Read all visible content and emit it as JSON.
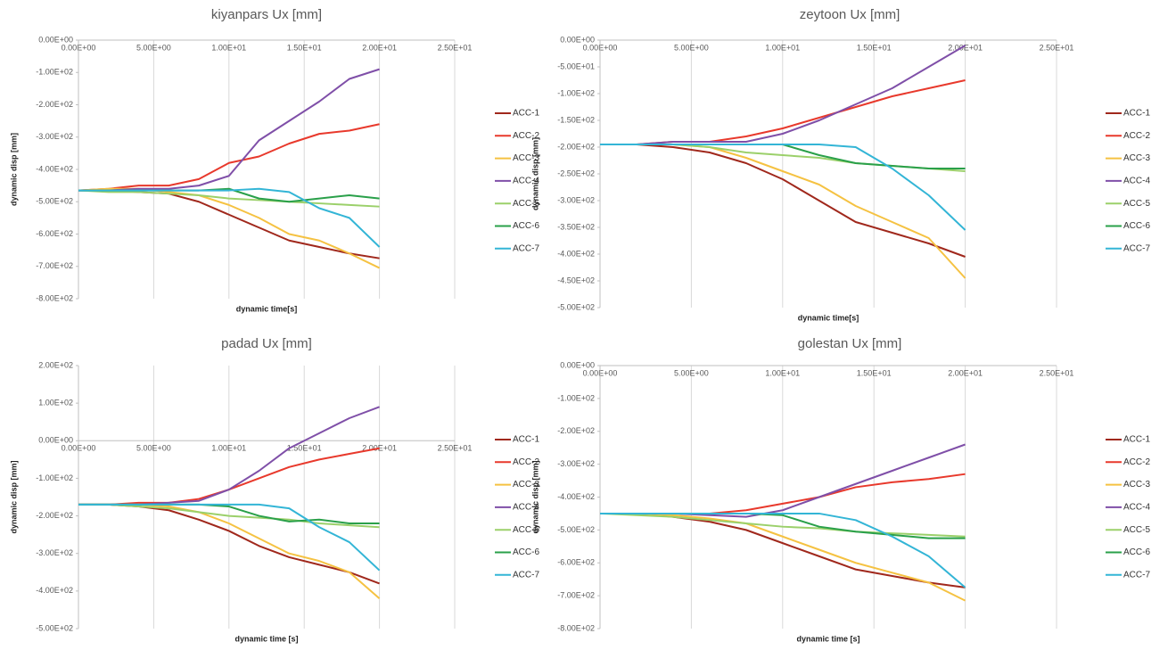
{
  "chart_data": [
    {
      "type": "line",
      "title": "kiyanpars Ux [mm]",
      "x_label": "dynamic time[s]",
      "y_label": "dynamic disp [mm]",
      "x": [
        0,
        2,
        4,
        6,
        8,
        10,
        12,
        14,
        16,
        18,
        20
      ],
      "xlim": [
        0,
        25
      ],
      "ylim": [
        -800,
        0
      ],
      "xgrid": true,
      "xticks": [
        {
          "value": 0,
          "label": "0.00E+00"
        },
        {
          "value": 5,
          "label": "5.00E+00"
        },
        {
          "value": 10,
          "label": "1.00E+01"
        },
        {
          "value": 15,
          "label": "1.50E+01"
        },
        {
          "value": 20,
          "label": "2.00E+01"
        },
        {
          "value": 25,
          "label": "2.50E+01"
        }
      ],
      "yticks": [
        {
          "value": 0,
          "label": "0.00E+00"
        },
        {
          "value": -100,
          "label": "-1.00E+02"
        },
        {
          "value": -200,
          "label": "-2.00E+02"
        },
        {
          "value": -300,
          "label": "-3.00E+02"
        },
        {
          "value": -400,
          "label": "-4.00E+02"
        },
        {
          "value": -500,
          "label": "-5.00E+02"
        },
        {
          "value": -600,
          "label": "-6.00E+02"
        },
        {
          "value": -700,
          "label": "-7.00E+02"
        },
        {
          "value": -800,
          "label": "-8.00E+02"
        }
      ],
      "series": [
        {
          "name": "ACC-1",
          "color": "#a0281c",
          "values": [
            -465,
            -465,
            -470,
            -475,
            -500,
            -540,
            -580,
            -620,
            -640,
            -660,
            -675
          ]
        },
        {
          "name": "ACC-2",
          "color": "#e8392c",
          "values": [
            -465,
            -460,
            -450,
            -450,
            -430,
            -380,
            -360,
            -320,
            -290,
            -280,
            -260
          ]
        },
        {
          "name": "ACC-3",
          "color": "#f5c242",
          "values": [
            -465,
            -460,
            -460,
            -470,
            -480,
            -510,
            -550,
            -600,
            -620,
            -660,
            -705
          ]
        },
        {
          "name": "ACC-4",
          "color": "#7f4fa8",
          "values": [
            -465,
            -465,
            -460,
            -460,
            -450,
            -420,
            -310,
            -250,
            -190,
            -120,
            -90
          ]
        },
        {
          "name": "ACC-5",
          "color": "#9bd06a",
          "values": [
            -465,
            -470,
            -470,
            -475,
            -480,
            -490,
            -495,
            -500,
            -505,
            -510,
            -515
          ]
        },
        {
          "name": "ACC-6",
          "color": "#2aa04a",
          "values": [
            -465,
            -465,
            -465,
            -465,
            -465,
            -460,
            -490,
            -500,
            -490,
            -480,
            -490
          ]
        },
        {
          "name": "ACC-7",
          "color": "#33b5d6",
          "values": [
            -465,
            -465,
            -465,
            -465,
            -465,
            -465,
            -460,
            -470,
            -520,
            -550,
            -640
          ]
        }
      ]
    },
    {
      "type": "line",
      "title": "zeytoon Ux [mm]",
      "x_label": "dynamic time[s]",
      "y_label": "dynamic disp [mm]",
      "x": [
        0,
        2,
        4,
        6,
        8,
        10,
        12,
        14,
        16,
        18,
        20
      ],
      "xlim": [
        0,
        25
      ],
      "ylim": [
        -500,
        0
      ],
      "xgrid": true,
      "xticks": [
        {
          "value": 0,
          "label": "0.00E+00"
        },
        {
          "value": 5,
          "label": "5.00E+00"
        },
        {
          "value": 10,
          "label": "1.00E+01"
        },
        {
          "value": 15,
          "label": "1.50E+01"
        },
        {
          "value": 20,
          "label": "2.00E+01"
        },
        {
          "value": 25,
          "label": "2.50E+01"
        }
      ],
      "yticks": [
        {
          "value": 0,
          "label": "0.00E+00"
        },
        {
          "value": -50,
          "label": "-5.00E+01"
        },
        {
          "value": -100,
          "label": "-1.00E+02"
        },
        {
          "value": -150,
          "label": "-1.50E+02"
        },
        {
          "value": -200,
          "label": "-2.00E+02"
        },
        {
          "value": -250,
          "label": "-2.50E+02"
        },
        {
          "value": -300,
          "label": "-3.00E+02"
        },
        {
          "value": -350,
          "label": "-3.50E+02"
        },
        {
          "value": -400,
          "label": "-4.00E+02"
        },
        {
          "value": -450,
          "label": "-4.50E+02"
        },
        {
          "value": -500,
          "label": "-5.00E+02"
        }
      ],
      "series": [
        {
          "name": "ACC-1",
          "color": "#a0281c",
          "values": [
            -195,
            -195,
            -200,
            -210,
            -230,
            -260,
            -300,
            -340,
            -360,
            -380,
            -405
          ]
        },
        {
          "name": "ACC-2",
          "color": "#e8392c",
          "values": [
            -195,
            -195,
            -190,
            -190,
            -180,
            -165,
            -145,
            -125,
            -105,
            -90,
            -75
          ]
        },
        {
          "name": "ACC-3",
          "color": "#f5c242",
          "values": [
            -195,
            -195,
            -195,
            -200,
            -220,
            -245,
            -270,
            -310,
            -340,
            -370,
            -445
          ]
        },
        {
          "name": "ACC-4",
          "color": "#7f4fa8",
          "values": [
            -195,
            -195,
            -190,
            -190,
            -190,
            -175,
            -150,
            -120,
            -90,
            -50,
            -10
          ]
        },
        {
          "name": "ACC-5",
          "color": "#9bd06a",
          "values": [
            -195,
            -195,
            -195,
            -200,
            -210,
            -215,
            -220,
            -230,
            -235,
            -240,
            -245
          ]
        },
        {
          "name": "ACC-6",
          "color": "#2aa04a",
          "values": [
            -195,
            -195,
            -195,
            -195,
            -195,
            -195,
            -215,
            -230,
            -235,
            -240,
            -240
          ]
        },
        {
          "name": "ACC-7",
          "color": "#33b5d6",
          "values": [
            -195,
            -195,
            -195,
            -195,
            -195,
            -195,
            -195,
            -200,
            -240,
            -290,
            -355
          ]
        }
      ]
    },
    {
      "type": "line",
      "title": "padad Ux [mm]",
      "x_label": "dynamic time [s]",
      "y_label": "dynamic disp [mm]",
      "x": [
        0,
        2,
        4,
        6,
        8,
        10,
        12,
        14,
        16,
        18,
        20
      ],
      "xlim": [
        0,
        25
      ],
      "ylim": [
        -500,
        200
      ],
      "xgrid": true,
      "xticks": [
        {
          "value": 0,
          "label": "0.00E+00"
        },
        {
          "value": 5,
          "label": "5.00E+00"
        },
        {
          "value": 10,
          "label": "1.00E+01"
        },
        {
          "value": 15,
          "label": "1.50E+01"
        },
        {
          "value": 20,
          "label": "2.00E+01"
        },
        {
          "value": 25,
          "label": "2.50E+01"
        }
      ],
      "yticks": [
        {
          "value": 200,
          "label": "2.00E+02"
        },
        {
          "value": 100,
          "label": "1.00E+02"
        },
        {
          "value": 0,
          "label": "0.00E+00"
        },
        {
          "value": -100,
          "label": "-1.00E+02"
        },
        {
          "value": -200,
          "label": "-2.00E+02"
        },
        {
          "value": -300,
          "label": "-3.00E+02"
        },
        {
          "value": -400,
          "label": "-4.00E+02"
        },
        {
          "value": -500,
          "label": "-5.00E+02"
        }
      ],
      "series": [
        {
          "name": "ACC-1",
          "color": "#a0281c",
          "values": [
            -170,
            -170,
            -175,
            -185,
            -210,
            -240,
            -280,
            -310,
            -330,
            -350,
            -380
          ]
        },
        {
          "name": "ACC-2",
          "color": "#e8392c",
          "values": [
            -170,
            -170,
            -165,
            -165,
            -155,
            -130,
            -100,
            -70,
            -50,
            -35,
            -20
          ]
        },
        {
          "name": "ACC-3",
          "color": "#f5c242",
          "values": [
            -170,
            -170,
            -170,
            -175,
            -190,
            -220,
            -260,
            -300,
            -320,
            -350,
            -420
          ]
        },
        {
          "name": "ACC-4",
          "color": "#7f4fa8",
          "values": [
            -170,
            -170,
            -170,
            -165,
            -160,
            -130,
            -80,
            -20,
            20,
            60,
            90
          ]
        },
        {
          "name": "ACC-5",
          "color": "#9bd06a",
          "values": [
            -170,
            -170,
            -175,
            -180,
            -190,
            -200,
            -205,
            -210,
            -220,
            -225,
            -230
          ]
        },
        {
          "name": "ACC-6",
          "color": "#2aa04a",
          "values": [
            -170,
            -170,
            -170,
            -170,
            -170,
            -175,
            -200,
            -215,
            -210,
            -220,
            -220
          ]
        },
        {
          "name": "ACC-7",
          "color": "#33b5d6",
          "values": [
            -170,
            -170,
            -170,
            -170,
            -170,
            -170,
            -170,
            -180,
            -230,
            -270,
            -345
          ]
        }
      ]
    },
    {
      "type": "line",
      "title": "golestan Ux [mm]",
      "x_label": "dynamic time [s]",
      "y_label": "dynamic disp [mm]",
      "x": [
        0,
        2,
        4,
        6,
        8,
        10,
        12,
        14,
        16,
        18,
        20
      ],
      "xlim": [
        0,
        25
      ],
      "ylim": [
        -800,
        0
      ],
      "xgrid": true,
      "xticks": [
        {
          "value": 0,
          "label": "0.00E+00"
        },
        {
          "value": 5,
          "label": "5.00E+00"
        },
        {
          "value": 10,
          "label": "1.00E+01"
        },
        {
          "value": 15,
          "label": "1.50E+01"
        },
        {
          "value": 20,
          "label": "2.00E+01"
        },
        {
          "value": 25,
          "label": "2.50E+01"
        }
      ],
      "yticks": [
        {
          "value": 0,
          "label": "0.00E+00"
        },
        {
          "value": -100,
          "label": "-1.00E+02"
        },
        {
          "value": -200,
          "label": "-2.00E+02"
        },
        {
          "value": -300,
          "label": "-3.00E+02"
        },
        {
          "value": -400,
          "label": "-4.00E+02"
        },
        {
          "value": -500,
          "label": "-5.00E+02"
        },
        {
          "value": -600,
          "label": "-6.00E+02"
        },
        {
          "value": -700,
          "label": "-7.00E+02"
        },
        {
          "value": -800,
          "label": "-8.00E+02"
        }
      ],
      "series": [
        {
          "name": "ACC-1",
          "color": "#a0281c",
          "values": [
            -450,
            -450,
            -460,
            -475,
            -500,
            -540,
            -580,
            -620,
            -640,
            -660,
            -675
          ]
        },
        {
          "name": "ACC-2",
          "color": "#e8392c",
          "values": [
            -450,
            -450,
            -450,
            -450,
            -440,
            -420,
            -400,
            -370,
            -355,
            -345,
            -330
          ]
        },
        {
          "name": "ACC-3",
          "color": "#f5c242",
          "values": [
            -450,
            -450,
            -455,
            -465,
            -480,
            -520,
            -560,
            -600,
            -630,
            -660,
            -715
          ]
        },
        {
          "name": "ACC-4",
          "color": "#7f4fa8",
          "values": [
            -450,
            -450,
            -450,
            -455,
            -460,
            -440,
            -400,
            -360,
            -320,
            -280,
            -240
          ]
        },
        {
          "name": "ACC-5",
          "color": "#9bd06a",
          "values": [
            -450,
            -455,
            -460,
            -470,
            -480,
            -490,
            -495,
            -505,
            -510,
            -515,
            -520
          ]
        },
        {
          "name": "ACC-6",
          "color": "#2aa04a",
          "values": [
            -450,
            -450,
            -450,
            -450,
            -450,
            -455,
            -490,
            -505,
            -515,
            -525,
            -525
          ]
        },
        {
          "name": "ACC-7",
          "color": "#33b5d6",
          "values": [
            -450,
            -450,
            -450,
            -450,
            -450,
            -450,
            -450,
            -470,
            -520,
            -580,
            -675
          ]
        }
      ]
    }
  ]
}
